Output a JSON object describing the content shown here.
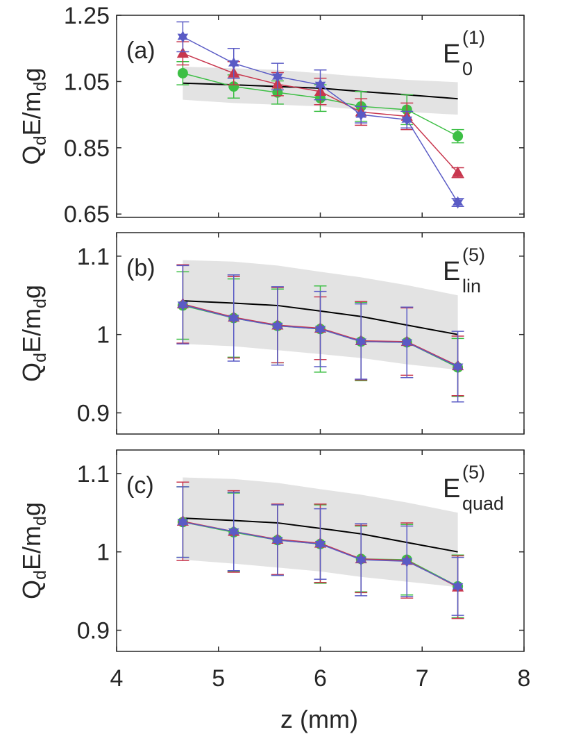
{
  "figure": {
    "xlabel": "z (mm)",
    "xticks": [
      "4",
      "5",
      "6",
      "7",
      "8"
    ]
  },
  "chart_data": [
    {
      "type": "line",
      "panel": "(a)",
      "equation": {
        "base": "E",
        "sup": "(1)",
        "sub": "0"
      },
      "ylabel": {
        "q": "Q",
        "q_sub": "d",
        "mid": "E/m",
        "m_sub": "d",
        "end": "g"
      },
      "xlim": [
        4,
        8
      ],
      "ylim": [
        0.64,
        1.25
      ],
      "yticks": [
        "0.65",
        "0.85",
        "1.05",
        "1.25"
      ],
      "x": [
        4.65,
        5.15,
        5.58,
        6.0,
        6.4,
        6.85,
        7.35
      ],
      "band": {
        "lower": [
          0.995,
          0.985,
          0.98,
          0.975,
          0.965,
          0.958,
          0.95
        ],
        "upper": [
          1.095,
          1.09,
          1.085,
          1.075,
          1.065,
          1.055,
          1.048
        ]
      },
      "model": [
        1.045,
        1.04,
        1.035,
        1.03,
        1.02,
        1.01,
        0.998
      ],
      "series": [
        {
          "name": "green",
          "color": "#3dbf45",
          "marker": "circle",
          "values": [
            1.075,
            1.035,
            1.017,
            1.0,
            0.975,
            0.965,
            0.885
          ],
          "err": [
            0.035,
            0.035,
            0.035,
            0.04,
            0.045,
            0.045,
            0.02
          ]
        },
        {
          "name": "red",
          "color": "#c8374e",
          "marker": "triangle",
          "values": [
            1.135,
            1.075,
            1.042,
            1.02,
            0.958,
            0.945,
            0.775
          ],
          "err": [
            0.035,
            0.035,
            0.035,
            0.04,
            0.04,
            0.04,
            0.015
          ]
        },
        {
          "name": "blue",
          "color": "#5a5bc5",
          "marker": "hexagram",
          "values": [
            1.185,
            1.105,
            1.065,
            1.04,
            0.95,
            0.935,
            0.685
          ],
          "err": [
            0.045,
            0.045,
            0.04,
            0.045,
            0.025,
            0.025,
            0.012
          ]
        }
      ]
    },
    {
      "type": "line",
      "panel": "(b)",
      "equation": {
        "base": "E",
        "sup": "(5)",
        "sub": "lin"
      },
      "ylabel": {
        "q": "Q",
        "q_sub": "d",
        "mid": "E/m",
        "m_sub": "d",
        "end": "g"
      },
      "xlim": [
        4,
        8
      ],
      "ylim": [
        0.873,
        1.13
      ],
      "yticks": [
        "0.9",
        "1",
        "1.1"
      ],
      "x": [
        4.65,
        5.15,
        5.58,
        6.0,
        6.4,
        6.85,
        7.35
      ],
      "band": {
        "lower": [
          0.988,
          0.985,
          0.98,
          0.975,
          0.97,
          0.962,
          0.955
        ],
        "upper": [
          1.095,
          1.093,
          1.088,
          1.08,
          1.073,
          1.063,
          1.05
        ]
      },
      "model": [
        1.043,
        1.04,
        1.037,
        1.03,
        1.023,
        1.012,
        1.0
      ],
      "series": [
        {
          "name": "green",
          "color": "#3dbf45",
          "marker": "circle",
          "values": [
            1.037,
            1.021,
            1.011,
            1.007,
            0.991,
            0.99,
            0.958
          ],
          "err": [
            0.043,
            0.05,
            0.047,
            0.055,
            0.05,
            0.045,
            0.037
          ]
        },
        {
          "name": "red",
          "color": "#c8374e",
          "marker": "triangle",
          "values": [
            1.039,
            1.022,
            1.012,
            1.008,
            0.992,
            0.991,
            0.96
          ],
          "err": [
            0.05,
            0.052,
            0.048,
            0.04,
            0.05,
            0.043,
            0.038
          ]
        },
        {
          "name": "blue",
          "color": "#5a5bc5",
          "marker": "hexagram",
          "values": [
            1.038,
            1.021,
            1.011,
            1.007,
            0.991,
            0.99,
            0.959
          ],
          "err": [
            0.05,
            0.055,
            0.05,
            0.048,
            0.048,
            0.045,
            0.045
          ]
        }
      ]
    },
    {
      "type": "line",
      "panel": "(c)",
      "equation": {
        "base": "E",
        "sup": "(5)",
        "sub": "quad"
      },
      "ylabel": {
        "q": "Q",
        "q_sub": "d",
        "mid": "E/m",
        "m_sub": "d",
        "end": "g"
      },
      "xlim": [
        4,
        8
      ],
      "ylim": [
        0.873,
        1.13
      ],
      "yticks": [
        "0.9",
        "1",
        "1.1"
      ],
      "x": [
        4.65,
        5.15,
        5.58,
        6.0,
        6.4,
        6.85,
        7.35
      ],
      "band": {
        "lower": [
          0.99,
          0.985,
          0.98,
          0.975,
          0.968,
          0.962,
          0.955
        ],
        "upper": [
          1.095,
          1.093,
          1.088,
          1.08,
          1.073,
          1.063,
          1.05
        ]
      },
      "model": [
        1.043,
        1.04,
        1.037,
        1.03,
        1.023,
        1.012,
        1.0
      ],
      "series": [
        {
          "name": "green",
          "color": "#3dbf45",
          "marker": "circle",
          "values": [
            1.038,
            1.025,
            1.015,
            1.01,
            0.991,
            0.99,
            0.956
          ],
          "err": [
            0.045,
            0.05,
            0.045,
            0.05,
            0.042,
            0.045,
            0.04
          ]
        },
        {
          "name": "red",
          "color": "#c8374e",
          "marker": "triangle",
          "values": [
            1.039,
            1.026,
            1.016,
            1.011,
            0.991,
            0.989,
            0.955
          ],
          "err": [
            0.05,
            0.052,
            0.045,
            0.05,
            0.043,
            0.048,
            0.04
          ]
        },
        {
          "name": "blue",
          "color": "#5a5bc5",
          "marker": "hexagram",
          "values": [
            1.038,
            1.026,
            1.015,
            1.01,
            0.99,
            0.988,
            0.956
          ],
          "err": [
            0.045,
            0.05,
            0.045,
            0.045,
            0.046,
            0.045,
            0.037
          ]
        }
      ]
    }
  ],
  "colors": {
    "axis": "#262626",
    "band": "#e3e3e3",
    "model": "#000000"
  }
}
